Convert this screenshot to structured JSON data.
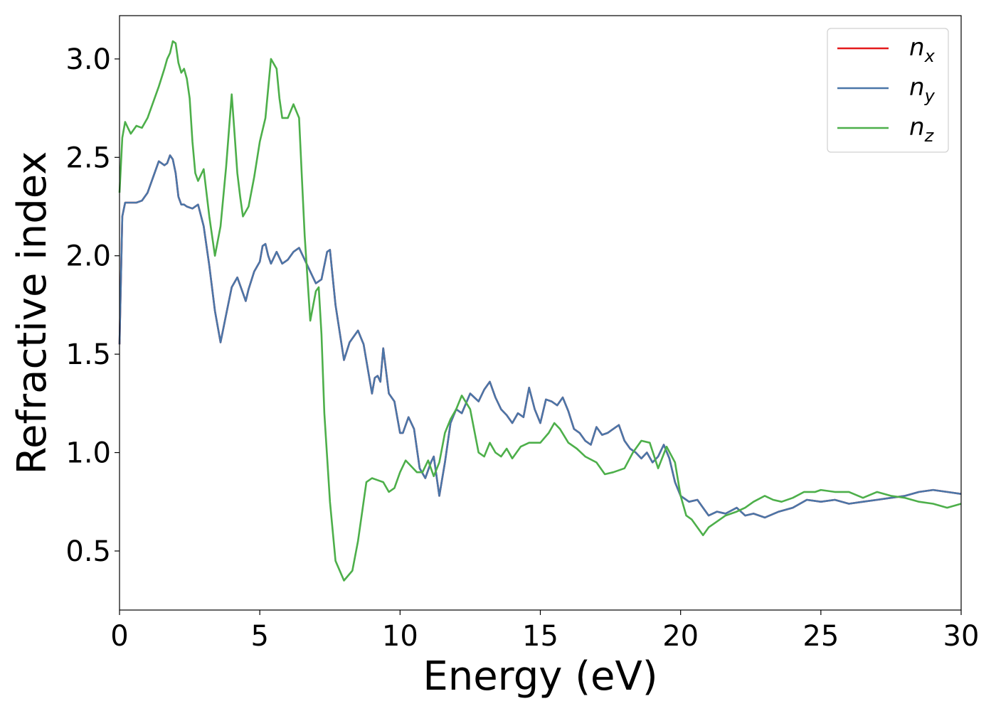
{
  "chart_data": {
    "type": "line",
    "xlabel": "Energy (eV)",
    "ylabel": "Refractive index",
    "xlim": [
      0,
      30
    ],
    "ylim": [
      0.2,
      3.22
    ],
    "xticks": [
      0,
      5,
      10,
      15,
      20,
      25,
      30
    ],
    "xtick_labels": [
      "0",
      "5",
      "10",
      "15",
      "20",
      "25",
      "30"
    ],
    "yticks": [
      0.5,
      1.0,
      1.5,
      2.0,
      2.5,
      3.0
    ],
    "ytick_labels": [
      "0.5",
      "1.0",
      "1.5",
      "2.0",
      "2.5",
      "3.0"
    ],
    "grid": false,
    "legend_position": "top-right",
    "series": [
      {
        "name": "n_x",
        "legend_main": "n",
        "legend_sub": "x",
        "color": "#e41a1c",
        "x": [
          0,
          0.1,
          0.2,
          0.4,
          0.6,
          0.8,
          1.0,
          1.2,
          1.4,
          1.6,
          1.7,
          1.8,
          1.9,
          2.0,
          2.1,
          2.2,
          2.3,
          2.4,
          2.6,
          2.8,
          3.0,
          3.2,
          3.4,
          3.6,
          3.8,
          4.0,
          4.2,
          4.4,
          4.5,
          4.6,
          4.8,
          5.0,
          5.1,
          5.2,
          5.3,
          5.4,
          5.6,
          5.8,
          6.0,
          6.2,
          6.4,
          6.6,
          6.8,
          7.0,
          7.2,
          7.4,
          7.5,
          7.7,
          8.0,
          8.2,
          8.5,
          8.7,
          9.0,
          9.1,
          9.2,
          9.3,
          9.4,
          9.6,
          9.8,
          10.0,
          10.1,
          10.3,
          10.5,
          10.7,
          10.9,
          11.1,
          11.2,
          11.4,
          11.6,
          11.8,
          12.0,
          12.2,
          12.5,
          12.8,
          13.0,
          13.2,
          13.4,
          13.6,
          13.8,
          14.0,
          14.2,
          14.4,
          14.6,
          14.8,
          15.0,
          15.2,
          15.4,
          15.6,
          15.8,
          16.0,
          16.2,
          16.4,
          16.6,
          16.8,
          17.0,
          17.2,
          17.4,
          17.6,
          17.8,
          18.0,
          18.2,
          18.4,
          18.6,
          18.8,
          19.0,
          19.2,
          19.4,
          19.6,
          19.8,
          20.0,
          20.3,
          20.6,
          20.8,
          21.0,
          21.3,
          21.6,
          22.0,
          22.3,
          22.6,
          23.0,
          23.5,
          24.0,
          24.5,
          25.0,
          25.5,
          26.0,
          26.5,
          27.0,
          27.5,
          28.0,
          28.5,
          29.0,
          29.5,
          30.0
        ],
        "y": [
          1.55,
          2.2,
          2.27,
          2.27,
          2.27,
          2.28,
          2.32,
          2.4,
          2.48,
          2.46,
          2.47,
          2.51,
          2.49,
          2.42,
          2.3,
          2.26,
          2.26,
          2.25,
          2.24,
          2.26,
          2.15,
          1.95,
          1.72,
          1.56,
          1.7,
          1.84,
          1.89,
          1.81,
          1.77,
          1.83,
          1.92,
          1.97,
          2.05,
          2.06,
          2.0,
          1.96,
          2.02,
          1.96,
          1.98,
          2.02,
          2.04,
          1.98,
          1.92,
          1.86,
          1.88,
          2.02,
          2.03,
          1.75,
          1.47,
          1.56,
          1.62,
          1.55,
          1.3,
          1.38,
          1.39,
          1.36,
          1.53,
          1.3,
          1.26,
          1.1,
          1.1,
          1.18,
          1.12,
          0.92,
          0.87,
          0.95,
          0.98,
          0.78,
          0.95,
          1.15,
          1.22,
          1.2,
          1.3,
          1.26,
          1.32,
          1.36,
          1.28,
          1.22,
          1.19,
          1.15,
          1.2,
          1.18,
          1.33,
          1.22,
          1.15,
          1.27,
          1.26,
          1.24,
          1.28,
          1.21,
          1.12,
          1.1,
          1.06,
          1.04,
          1.13,
          1.09,
          1.1,
          1.12,
          1.14,
          1.06,
          1.02,
          1.0,
          0.97,
          1.0,
          0.95,
          0.98,
          1.04,
          0.97,
          0.85,
          0.78,
          0.75,
          0.76,
          0.72,
          0.68,
          0.7,
          0.69,
          0.72,
          0.68,
          0.69,
          0.67,
          0.7,
          0.72,
          0.76,
          0.75,
          0.76,
          0.74,
          0.75,
          0.76,
          0.77,
          0.78,
          0.8,
          0.81,
          0.8,
          0.79
        ],
        "_note_same_as": "n_y"
      },
      {
        "name": "n_y",
        "legend_main": "n",
        "legend_sub": "y",
        "color": "#4a76a8",
        "x": [
          0,
          0.1,
          0.2,
          0.4,
          0.6,
          0.8,
          1.0,
          1.2,
          1.4,
          1.6,
          1.7,
          1.8,
          1.9,
          2.0,
          2.1,
          2.2,
          2.3,
          2.4,
          2.6,
          2.8,
          3.0,
          3.2,
          3.4,
          3.6,
          3.8,
          4.0,
          4.2,
          4.4,
          4.5,
          4.6,
          4.8,
          5.0,
          5.1,
          5.2,
          5.3,
          5.4,
          5.6,
          5.8,
          6.0,
          6.2,
          6.4,
          6.6,
          6.8,
          7.0,
          7.2,
          7.4,
          7.5,
          7.7,
          8.0,
          8.2,
          8.5,
          8.7,
          9.0,
          9.1,
          9.2,
          9.3,
          9.4,
          9.6,
          9.8,
          10.0,
          10.1,
          10.3,
          10.5,
          10.7,
          10.9,
          11.1,
          11.2,
          11.4,
          11.6,
          11.8,
          12.0,
          12.2,
          12.5,
          12.8,
          13.0,
          13.2,
          13.4,
          13.6,
          13.8,
          14.0,
          14.2,
          14.4,
          14.6,
          14.8,
          15.0,
          15.2,
          15.4,
          15.6,
          15.8,
          16.0,
          16.2,
          16.4,
          16.6,
          16.8,
          17.0,
          17.2,
          17.4,
          17.6,
          17.8,
          18.0,
          18.2,
          18.4,
          18.6,
          18.8,
          19.0,
          19.2,
          19.4,
          19.6,
          19.8,
          20.0,
          20.3,
          20.6,
          20.8,
          21.0,
          21.3,
          21.6,
          22.0,
          22.3,
          22.6,
          23.0,
          23.5,
          24.0,
          24.5,
          25.0,
          25.5,
          26.0,
          26.5,
          27.0,
          27.5,
          28.0,
          28.5,
          29.0,
          29.5,
          30.0
        ],
        "y": [
          1.55,
          2.2,
          2.27,
          2.27,
          2.27,
          2.28,
          2.32,
          2.4,
          2.48,
          2.46,
          2.47,
          2.51,
          2.49,
          2.42,
          2.3,
          2.26,
          2.26,
          2.25,
          2.24,
          2.26,
          2.15,
          1.95,
          1.72,
          1.56,
          1.7,
          1.84,
          1.89,
          1.81,
          1.77,
          1.83,
          1.92,
          1.97,
          2.05,
          2.06,
          2.0,
          1.96,
          2.02,
          1.96,
          1.98,
          2.02,
          2.04,
          1.98,
          1.92,
          1.86,
          1.88,
          2.02,
          2.03,
          1.75,
          1.47,
          1.56,
          1.62,
          1.55,
          1.3,
          1.38,
          1.39,
          1.36,
          1.53,
          1.3,
          1.26,
          1.1,
          1.1,
          1.18,
          1.12,
          0.92,
          0.87,
          0.95,
          0.98,
          0.78,
          0.95,
          1.15,
          1.22,
          1.2,
          1.3,
          1.26,
          1.32,
          1.36,
          1.28,
          1.22,
          1.19,
          1.15,
          1.2,
          1.18,
          1.33,
          1.22,
          1.15,
          1.27,
          1.26,
          1.24,
          1.28,
          1.21,
          1.12,
          1.1,
          1.06,
          1.04,
          1.13,
          1.09,
          1.1,
          1.12,
          1.14,
          1.06,
          1.02,
          1.0,
          0.97,
          1.0,
          0.95,
          0.98,
          1.04,
          0.97,
          0.85,
          0.78,
          0.75,
          0.76,
          0.72,
          0.68,
          0.7,
          0.69,
          0.72,
          0.68,
          0.69,
          0.67,
          0.7,
          0.72,
          0.76,
          0.75,
          0.76,
          0.74,
          0.75,
          0.76,
          0.77,
          0.78,
          0.8,
          0.81,
          0.8,
          0.79
        ]
      },
      {
        "name": "n_z",
        "legend_main": "n",
        "legend_sub": "z",
        "color": "#4daf4a",
        "x": [
          0,
          0.1,
          0.2,
          0.3,
          0.4,
          0.5,
          0.6,
          0.8,
          1.0,
          1.2,
          1.4,
          1.6,
          1.7,
          1.8,
          1.9,
          2.0,
          2.1,
          2.2,
          2.3,
          2.4,
          2.5,
          2.6,
          2.7,
          2.8,
          3.0,
          3.2,
          3.4,
          3.6,
          3.8,
          4.0,
          4.1,
          4.2,
          4.3,
          4.4,
          4.6,
          4.8,
          5.0,
          5.2,
          5.4,
          5.6,
          5.7,
          5.8,
          6.0,
          6.2,
          6.4,
          6.5,
          6.6,
          6.8,
          7.0,
          7.1,
          7.2,
          7.3,
          7.5,
          7.7,
          8.0,
          8.3,
          8.5,
          8.8,
          9.0,
          9.2,
          9.4,
          9.6,
          9.8,
          10.0,
          10.2,
          10.4,
          10.6,
          10.8,
          11.0,
          11.2,
          11.4,
          11.6,
          11.8,
          12.0,
          12.2,
          12.5,
          12.8,
          13.0,
          13.2,
          13.4,
          13.6,
          13.8,
          14.0,
          14.3,
          14.6,
          15.0,
          15.3,
          15.5,
          15.7,
          16.0,
          16.3,
          16.6,
          17.0,
          17.3,
          17.6,
          18.0,
          18.3,
          18.6,
          18.9,
          19.2,
          19.5,
          19.8,
          20.0,
          20.2,
          20.4,
          20.6,
          20.8,
          21.0,
          21.3,
          21.6,
          22.0,
          22.3,
          22.6,
          23.0,
          23.3,
          23.6,
          24.0,
          24.4,
          24.8,
          25.0,
          25.5,
          26.0,
          26.5,
          27.0,
          27.5,
          28.0,
          28.5,
          29.0,
          29.5,
          30.0
        ],
        "y": [
          2.32,
          2.6,
          2.68,
          2.65,
          2.62,
          2.64,
          2.66,
          2.65,
          2.7,
          2.78,
          2.86,
          2.95,
          3.0,
          3.03,
          3.09,
          3.08,
          2.98,
          2.93,
          2.95,
          2.9,
          2.8,
          2.58,
          2.42,
          2.38,
          2.44,
          2.2,
          2.0,
          2.15,
          2.45,
          2.82,
          2.62,
          2.42,
          2.3,
          2.2,
          2.25,
          2.4,
          2.58,
          2.7,
          3.0,
          2.95,
          2.8,
          2.7,
          2.7,
          2.77,
          2.7,
          2.4,
          2.1,
          1.67,
          1.82,
          1.84,
          1.6,
          1.2,
          0.75,
          0.45,
          0.35,
          0.4,
          0.55,
          0.85,
          0.87,
          0.86,
          0.85,
          0.8,
          0.82,
          0.9,
          0.96,
          0.93,
          0.9,
          0.9,
          0.96,
          0.88,
          0.95,
          1.1,
          1.17,
          1.22,
          1.29,
          1.22,
          1.0,
          0.98,
          1.05,
          1.0,
          0.98,
          1.02,
          0.97,
          1.03,
          1.05,
          1.05,
          1.1,
          1.15,
          1.12,
          1.05,
          1.02,
          0.98,
          0.95,
          0.89,
          0.9,
          0.92,
          1.0,
          1.06,
          1.05,
          0.92,
          1.03,
          0.95,
          0.78,
          0.68,
          0.66,
          0.62,
          0.58,
          0.62,
          0.65,
          0.68,
          0.7,
          0.72,
          0.75,
          0.78,
          0.76,
          0.75,
          0.77,
          0.8,
          0.8,
          0.81,
          0.8,
          0.8,
          0.77,
          0.8,
          0.78,
          0.77,
          0.75,
          0.74,
          0.72,
          0.74
        ]
      }
    ]
  }
}
